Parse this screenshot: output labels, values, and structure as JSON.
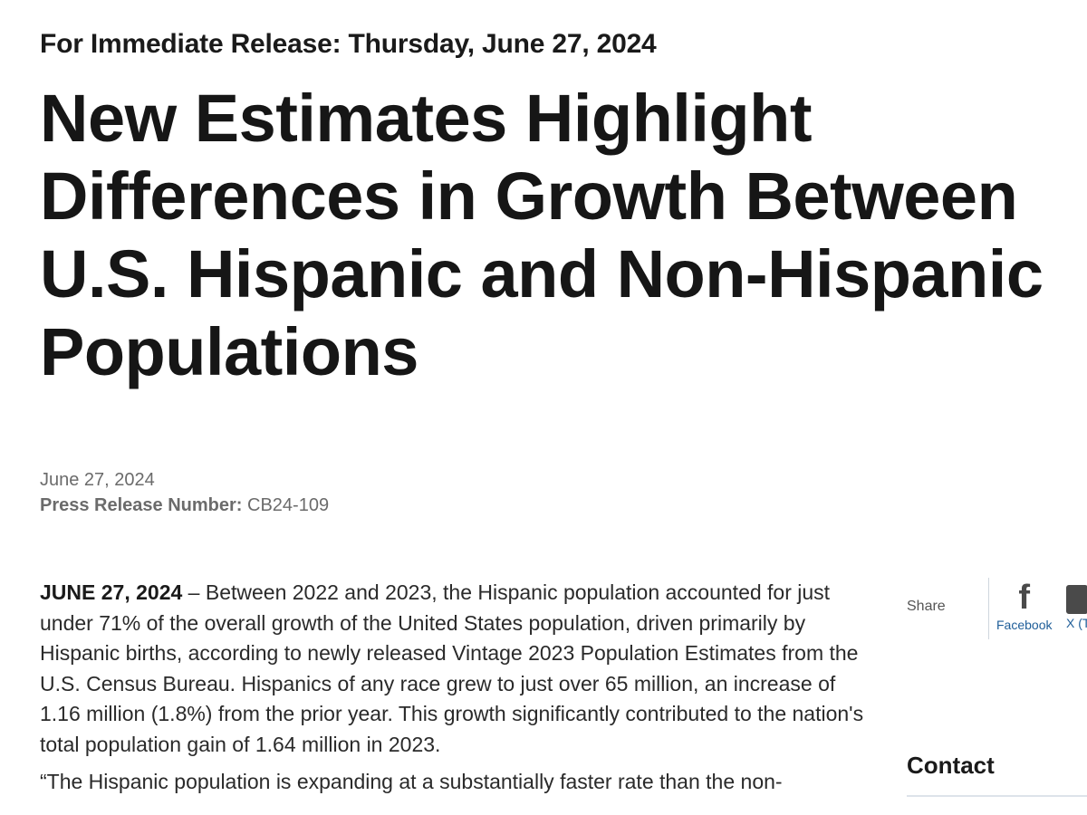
{
  "release": {
    "line": "For Immediate Release: Thursday, June 27, 2024"
  },
  "headline": {
    "lines": [
      "New Estimates Highlight",
      "Differences in Growth Between",
      "U.S. Hispanic and Non-Hispanic",
      "Populations"
    ]
  },
  "meta": {
    "date": "June 27, 2024",
    "number_label": "Press Release Number:",
    "number_value": "CB24-109"
  },
  "article": {
    "dateline": "JUNE 27, 2024",
    "paragraph1": " – Between 2022 and 2023, the Hispanic population accounted for just under 71% of the overall growth of the United States population, driven primarily by Hispanic births, according to newly released Vintage 2023 Population Estimates from the U.S. Census Bureau. Hispanics of any race grew to  just over 65 million, an increase of 1.16 million (1.8%) from the prior year. This growth significantly contributed to the nation's total population gain of 1.64 million in 2023.",
    "paragraph2_partial": "“The Hispanic population is expanding at a substantially faster rate than the non-"
  },
  "share": {
    "label": "Share",
    "facebook_label": "Facebook",
    "x_label": "X (Twitter)",
    "facebook_icon": "f"
  },
  "sidebar": {
    "contact_heading": "Contact"
  }
}
